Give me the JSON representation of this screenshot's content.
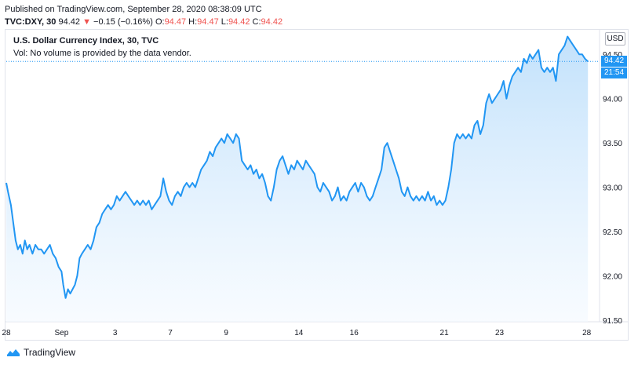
{
  "header": {
    "published": "Published on TradingView.com, September 28, 2020 08:38:09 UTC",
    "symbol": "TVC:DXY, 30",
    "last": "94.42",
    "change": "−0.15 (−0.16%)",
    "o_label": "O:",
    "o_value": "94.47",
    "h_label": "H:",
    "h_value": "94.47",
    "l_label": "L:",
    "l_value": "94.42",
    "c_label": "C:",
    "c_value": "94.42",
    "down_arrow": "▼"
  },
  "legend": {
    "title": "U.S. Dollar Currency Index, 30, TVC",
    "vol": "Vol: No volume is provided by the data vendor."
  },
  "currency": "USD",
  "price_tag": {
    "price": "94.42",
    "countdown": "21:54"
  },
  "footer": {
    "brand": "TradingView",
    "logo_icon": "tradingview-logo-icon"
  },
  "colors": {
    "line": "#2196f3",
    "fill_top": "#bbdefb",
    "fill_bottom": "#f3f9ff",
    "down": "#ef5350"
  },
  "chart_data": {
    "type": "area",
    "ylim": [
      91.5,
      94.75
    ],
    "y_ticks": [
      "91.50",
      "92.00",
      "92.50",
      "93.00",
      "93.50",
      "94.00",
      "94.50"
    ],
    "x_ticks": [
      "28",
      "Sep",
      "3",
      "7",
      "9",
      "14",
      "16",
      "21",
      "23",
      "28"
    ],
    "x_tick_pos": [
      0.0,
      9.5,
      18.7,
      28.2,
      37.8,
      50.3,
      59.8,
      75.3,
      84.8,
      99.8
    ],
    "x_range": [
      0,
      102
    ],
    "last_value": 94.42,
    "series": [
      {
        "values": [
          [
            0,
            93.05
          ],
          [
            0.3,
            92.95
          ],
          [
            0.8,
            92.8
          ],
          [
            1.2,
            92.6
          ],
          [
            1.6,
            92.4
          ],
          [
            2,
            92.3
          ],
          [
            2.4,
            92.35
          ],
          [
            2.8,
            92.25
          ],
          [
            3.2,
            92.4
          ],
          [
            3.6,
            92.3
          ],
          [
            4,
            92.35
          ],
          [
            4.5,
            92.25
          ],
          [
            5,
            92.35
          ],
          [
            5.5,
            92.3
          ],
          [
            6,
            92.3
          ],
          [
            6.5,
            92.25
          ],
          [
            7,
            92.3
          ],
          [
            7.5,
            92.35
          ],
          [
            8,
            92.25
          ],
          [
            8.5,
            92.2
          ],
          [
            9,
            92.1
          ],
          [
            9.5,
            92.05
          ],
          [
            9.8,
            91.9
          ],
          [
            10.2,
            91.75
          ],
          [
            10.6,
            91.85
          ],
          [
            11,
            91.8
          ],
          [
            11.4,
            91.85
          ],
          [
            11.8,
            91.9
          ],
          [
            12.2,
            92.0
          ],
          [
            12.6,
            92.2
          ],
          [
            13,
            92.25
          ],
          [
            13.5,
            92.3
          ],
          [
            14,
            92.35
          ],
          [
            14.5,
            92.3
          ],
          [
            15,
            92.4
          ],
          [
            15.5,
            92.55
          ],
          [
            16,
            92.6
          ],
          [
            16.5,
            92.7
          ],
          [
            17,
            92.75
          ],
          [
            17.5,
            92.8
          ],
          [
            18,
            92.75
          ],
          [
            18.5,
            92.8
          ],
          [
            19,
            92.9
          ],
          [
            19.5,
            92.85
          ],
          [
            20,
            92.9
          ],
          [
            20.5,
            92.95
          ],
          [
            21,
            92.9
          ],
          [
            21.5,
            92.85
          ],
          [
            22,
            92.8
          ],
          [
            22.5,
            92.85
          ],
          [
            23,
            92.8
          ],
          [
            23.5,
            92.85
          ],
          [
            24,
            92.8
          ],
          [
            24.5,
            92.85
          ],
          [
            25,
            92.75
          ],
          [
            25.5,
            92.8
          ],
          [
            26,
            92.85
          ],
          [
            26.5,
            92.9
          ],
          [
            27,
            93.1
          ],
          [
            27.5,
            92.95
          ],
          [
            28,
            92.85
          ],
          [
            28.5,
            92.8
          ],
          [
            29,
            92.9
          ],
          [
            29.5,
            92.95
          ],
          [
            30,
            92.9
          ],
          [
            30.5,
            93.0
          ],
          [
            31,
            93.05
          ],
          [
            31.5,
            93.0
          ],
          [
            32,
            93.05
          ],
          [
            32.5,
            93.0
          ],
          [
            33,
            93.1
          ],
          [
            33.5,
            93.2
          ],
          [
            34,
            93.25
          ],
          [
            34.5,
            93.3
          ],
          [
            35,
            93.4
          ],
          [
            35.5,
            93.35
          ],
          [
            36,
            93.45
          ],
          [
            36.5,
            93.5
          ],
          [
            37,
            93.55
          ],
          [
            37.5,
            93.5
          ],
          [
            38,
            93.6
          ],
          [
            38.5,
            93.55
          ],
          [
            39,
            93.5
          ],
          [
            39.5,
            93.6
          ],
          [
            40,
            93.55
          ],
          [
            40.5,
            93.3
          ],
          [
            41,
            93.25
          ],
          [
            41.5,
            93.2
          ],
          [
            42,
            93.25
          ],
          [
            42.5,
            93.15
          ],
          [
            43,
            93.2
          ],
          [
            43.5,
            93.1
          ],
          [
            44,
            93.15
          ],
          [
            44.5,
            93.05
          ],
          [
            45,
            92.9
          ],
          [
            45.5,
            92.85
          ],
          [
            46,
            93.0
          ],
          [
            46.5,
            93.2
          ],
          [
            47,
            93.3
          ],
          [
            47.5,
            93.35
          ],
          [
            48,
            93.25
          ],
          [
            48.5,
            93.15
          ],
          [
            49,
            93.25
          ],
          [
            49.5,
            93.2
          ],
          [
            50,
            93.3
          ],
          [
            50.5,
            93.25
          ],
          [
            51,
            93.2
          ],
          [
            51.5,
            93.3
          ],
          [
            52,
            93.25
          ],
          [
            52.5,
            93.2
          ],
          [
            53,
            93.15
          ],
          [
            53.5,
            93.0
          ],
          [
            54,
            92.95
          ],
          [
            54.5,
            93.05
          ],
          [
            55,
            93.0
          ],
          [
            55.5,
            92.95
          ],
          [
            56,
            92.85
          ],
          [
            56.5,
            92.9
          ],
          [
            57,
            93.0
          ],
          [
            57.5,
            92.85
          ],
          [
            58,
            92.9
          ],
          [
            58.5,
            92.85
          ],
          [
            59,
            92.95
          ],
          [
            59.5,
            93.0
          ],
          [
            60,
            93.05
          ],
          [
            60.5,
            92.95
          ],
          [
            61,
            93.05
          ],
          [
            61.5,
            93.0
          ],
          [
            62,
            92.9
          ],
          [
            62.5,
            92.85
          ],
          [
            63,
            92.9
          ],
          [
            63.5,
            93.0
          ],
          [
            64,
            93.1
          ],
          [
            64.5,
            93.2
          ],
          [
            65,
            93.45
          ],
          [
            65.5,
            93.5
          ],
          [
            66,
            93.4
          ],
          [
            66.5,
            93.3
          ],
          [
            67,
            93.2
          ],
          [
            67.5,
            93.1
          ],
          [
            68,
            92.95
          ],
          [
            68.5,
            92.9
          ],
          [
            69,
            93.0
          ],
          [
            69.5,
            92.9
          ],
          [
            70,
            92.85
          ],
          [
            70.5,
            92.9
          ],
          [
            71,
            92.85
          ],
          [
            71.5,
            92.9
          ],
          [
            72,
            92.85
          ],
          [
            72.5,
            92.95
          ],
          [
            73,
            92.85
          ],
          [
            73.5,
            92.9
          ],
          [
            74,
            92.8
          ],
          [
            74.5,
            92.85
          ],
          [
            75,
            92.8
          ],
          [
            75.5,
            92.85
          ],
          [
            76,
            93.0
          ],
          [
            76.5,
            93.2
          ],
          [
            77,
            93.5
          ],
          [
            77.5,
            93.6
          ],
          [
            78,
            93.55
          ],
          [
            78.5,
            93.6
          ],
          [
            79,
            93.55
          ],
          [
            79.5,
            93.6
          ],
          [
            80,
            93.55
          ],
          [
            80.5,
            93.7
          ],
          [
            81,
            93.75
          ],
          [
            81.5,
            93.6
          ],
          [
            82,
            93.7
          ],
          [
            82.5,
            93.95
          ],
          [
            83,
            94.05
          ],
          [
            83.5,
            93.95
          ],
          [
            84,
            94.0
          ],
          [
            84.5,
            94.05
          ],
          [
            85,
            94.1
          ],
          [
            85.5,
            94.2
          ],
          [
            86,
            94.0
          ],
          [
            86.5,
            94.15
          ],
          [
            87,
            94.25
          ],
          [
            87.5,
            94.3
          ],
          [
            88,
            94.35
          ],
          [
            88.5,
            94.3
          ],
          [
            89,
            94.45
          ],
          [
            89.5,
            94.4
          ],
          [
            90,
            94.5
          ],
          [
            90.5,
            94.45
          ],
          [
            91,
            94.5
          ],
          [
            91.5,
            94.55
          ],
          [
            92,
            94.35
          ],
          [
            92.5,
            94.3
          ],
          [
            93,
            94.35
          ],
          [
            93.5,
            94.3
          ],
          [
            94,
            94.35
          ],
          [
            94.5,
            94.2
          ],
          [
            95,
            94.5
          ],
          [
            95.5,
            94.55
          ],
          [
            96,
            94.6
          ],
          [
            96.5,
            94.7
          ],
          [
            97,
            94.65
          ],
          [
            97.5,
            94.6
          ],
          [
            98,
            94.55
          ],
          [
            98.5,
            94.5
          ],
          [
            99,
            94.5
          ],
          [
            99.5,
            94.45
          ],
          [
            100,
            94.42
          ]
        ]
      }
    ]
  }
}
